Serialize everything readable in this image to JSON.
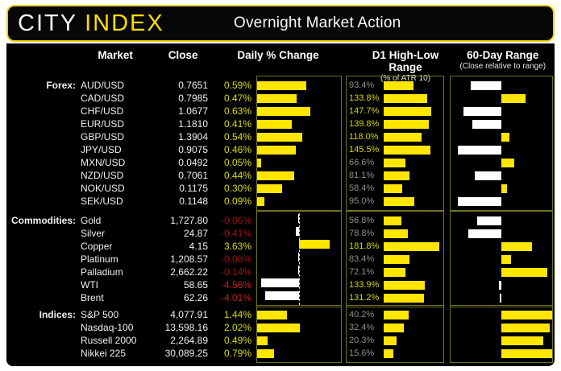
{
  "header": {
    "logo_city": "CITY",
    "logo_index": "INDEX",
    "title": "Overnight Market Action"
  },
  "columns": {
    "market": "Market",
    "close": "Close",
    "daily": "Daily % Change",
    "d1": "D1 High-Low Range",
    "d1_sub": "(% of ATR 10)",
    "range60": "60-Day Range",
    "range60_sub": "(Close relative to range)"
  },
  "colors": {
    "accent_yellow": "#ffdf00",
    "bar_yellow": "#ffe600",
    "bar_white": "#ffffff",
    "positive_text": "#dcdc00",
    "negative_text_mild": "#9e1212",
    "negative_text_strong": "#c32020",
    "d1_label_low": "#8f8f8f",
    "d1_label_high": "#d8d800",
    "panel_border": "#73731a"
  },
  "chart_data": {
    "type": "table",
    "title": "Overnight Market Action",
    "columns": [
      "Market",
      "Close",
      "Daily % Change",
      "D1 High-Low Range (% of ATR 10)",
      "60-Day Range (Close relative to range)"
    ],
    "legend_note": "daily_pct drawn as bar on daily_axis; d1_pct drawn as bar from 0 to d1_scale_max; range60_pct drawn from panel midpoint, -100..100 = low..high of 60-day range",
    "groups": [
      {
        "label": "Forex:",
        "daily_axis": {
          "min": 0,
          "max": 1.0
        },
        "d1_scale_max": 185,
        "rows": [
          {
            "market": "AUD/USD",
            "close": "0.7651",
            "daily_pct": 0.59,
            "d1_pct": 93.4,
            "range60_pct": -60
          },
          {
            "market": "CAD/USD",
            "close": "0.7985",
            "daily_pct": 0.47,
            "d1_pct": 133.8,
            "range60_pct": 47
          },
          {
            "market": "CHF/USD",
            "close": "1.0677",
            "daily_pct": 0.63,
            "d1_pct": 147.7,
            "range60_pct": -74
          },
          {
            "market": "EUR/USD",
            "close": "1.1810",
            "daily_pct": 0.41,
            "d1_pct": 139.8,
            "range60_pct": -57
          },
          {
            "market": "GBP/USD",
            "close": "1.3904",
            "daily_pct": 0.54,
            "d1_pct": 118.0,
            "range60_pct": 16
          },
          {
            "market": "JPY/USD",
            "close": "0.9075",
            "daily_pct": 0.46,
            "d1_pct": 145.5,
            "range60_pct": -85
          },
          {
            "market": "MXN/USD",
            "close": "0.0492",
            "daily_pct": 0.05,
            "d1_pct": 66.6,
            "range60_pct": 25
          },
          {
            "market": "NZD/USD",
            "close": "0.7061",
            "daily_pct": 0.44,
            "d1_pct": 81.1,
            "range60_pct": -52
          },
          {
            "market": "NOK/USD",
            "close": "0.1175",
            "daily_pct": 0.3,
            "d1_pct": 58.4,
            "range60_pct": 11
          },
          {
            "market": "SEK/USD",
            "close": "0.1148",
            "daily_pct": 0.09,
            "d1_pct": 95.0,
            "range60_pct": -86
          }
        ]
      },
      {
        "label": "Commodities:",
        "daily_axis": {
          "min": -5.0,
          "max": 5.0
        },
        "d1_scale_max": 195,
        "rows": [
          {
            "market": "Gold",
            "close": "1,727.80",
            "daily_pct": -0.06,
            "d1_pct": 56.8,
            "range60_pct": -47
          },
          {
            "market": "Silver",
            "close": "24.87",
            "daily_pct": -0.41,
            "d1_pct": 78.8,
            "range60_pct": -65
          },
          {
            "market": "Copper",
            "close": "4.15",
            "daily_pct": 3.63,
            "d1_pct": 181.8,
            "range60_pct": 60
          },
          {
            "market": "Platinum",
            "close": "1,208.57",
            "daily_pct": -0.08,
            "d1_pct": 83.4,
            "range60_pct": 19
          },
          {
            "market": "Palladium",
            "close": "2,662.22",
            "daily_pct": -0.14,
            "d1_pct": 72.1,
            "range60_pct": 91
          },
          {
            "market": "WTI",
            "close": "58.65",
            "daily_pct": -4.56,
            "d1_pct": 133.9,
            "range60_pct": -5
          },
          {
            "market": "Brent",
            "close": "62.26",
            "daily_pct": -4.01,
            "d1_pct": 131.2,
            "range60_pct": -2
          }
        ]
      },
      {
        "label": "Indices:",
        "daily_axis": {
          "min": 0,
          "max": 4.0
        },
        "d1_scale_max": 95,
        "rows": [
          {
            "market": "S&P 500",
            "close": "4,077.91",
            "daily_pct": 1.44,
            "d1_pct": 40.2,
            "range60_pct": 100
          },
          {
            "market": "Nasdaq-100",
            "close": "13,598.16",
            "daily_pct": 2.02,
            "d1_pct": 32.4,
            "range60_pct": 95
          },
          {
            "market": "Russell 2000",
            "close": "2,264.89",
            "daily_pct": 0.49,
            "d1_pct": 20.3,
            "range60_pct": 82
          },
          {
            "market": "Nikkei 225",
            "close": "30,089.25",
            "daily_pct": 0.79,
            "d1_pct": 15.6,
            "range60_pct": 100
          }
        ]
      }
    ]
  }
}
